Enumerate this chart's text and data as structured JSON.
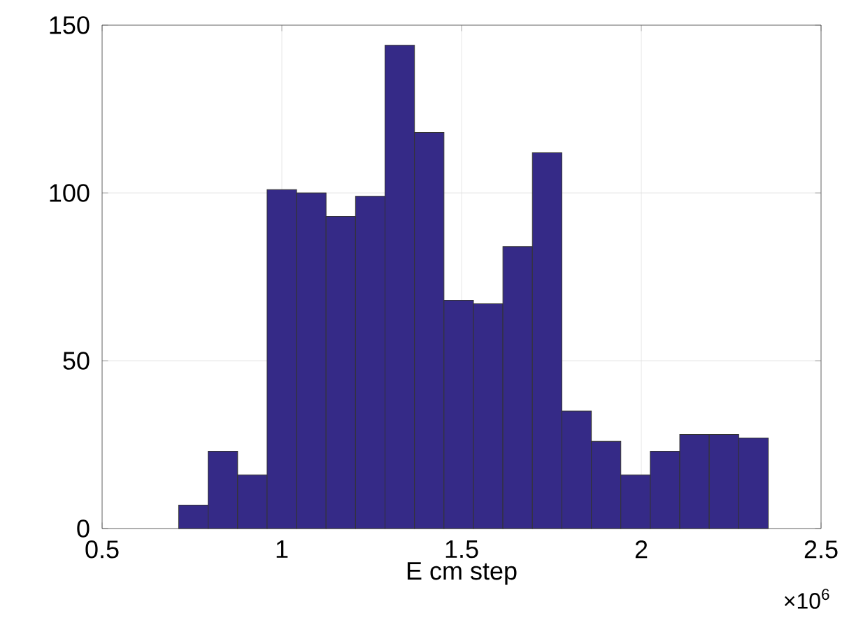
{
  "chart_data": {
    "type": "histogram",
    "xlabel": "E cm step",
    "annotations": [
      "×10$^{6}$"
    ],
    "bins": [
      0.713,
      0.795,
      0.877,
      0.959,
      1.041,
      1.123,
      1.205,
      1.287,
      1.369,
      1.451,
      1.533,
      1.615,
      1.697,
      1.779,
      1.861,
      1.943,
      2.025,
      2.107,
      2.189,
      2.271,
      2.353
    ],
    "values": [
      7,
      23,
      16,
      101,
      100,
      93,
      99,
      144,
      118,
      68,
      67,
      84,
      112,
      35,
      26,
      16,
      23,
      28,
      28,
      27
    ],
    "color": "#352a87",
    "xlim": [
      0.5,
      2.5
    ],
    "ylim": [
      0,
      150
    ],
    "xticks": [
      0.5,
      1,
      1.5,
      2,
      2.5
    ],
    "yticks": [
      0,
      50,
      100,
      150
    ],
    "grid": true
  }
}
